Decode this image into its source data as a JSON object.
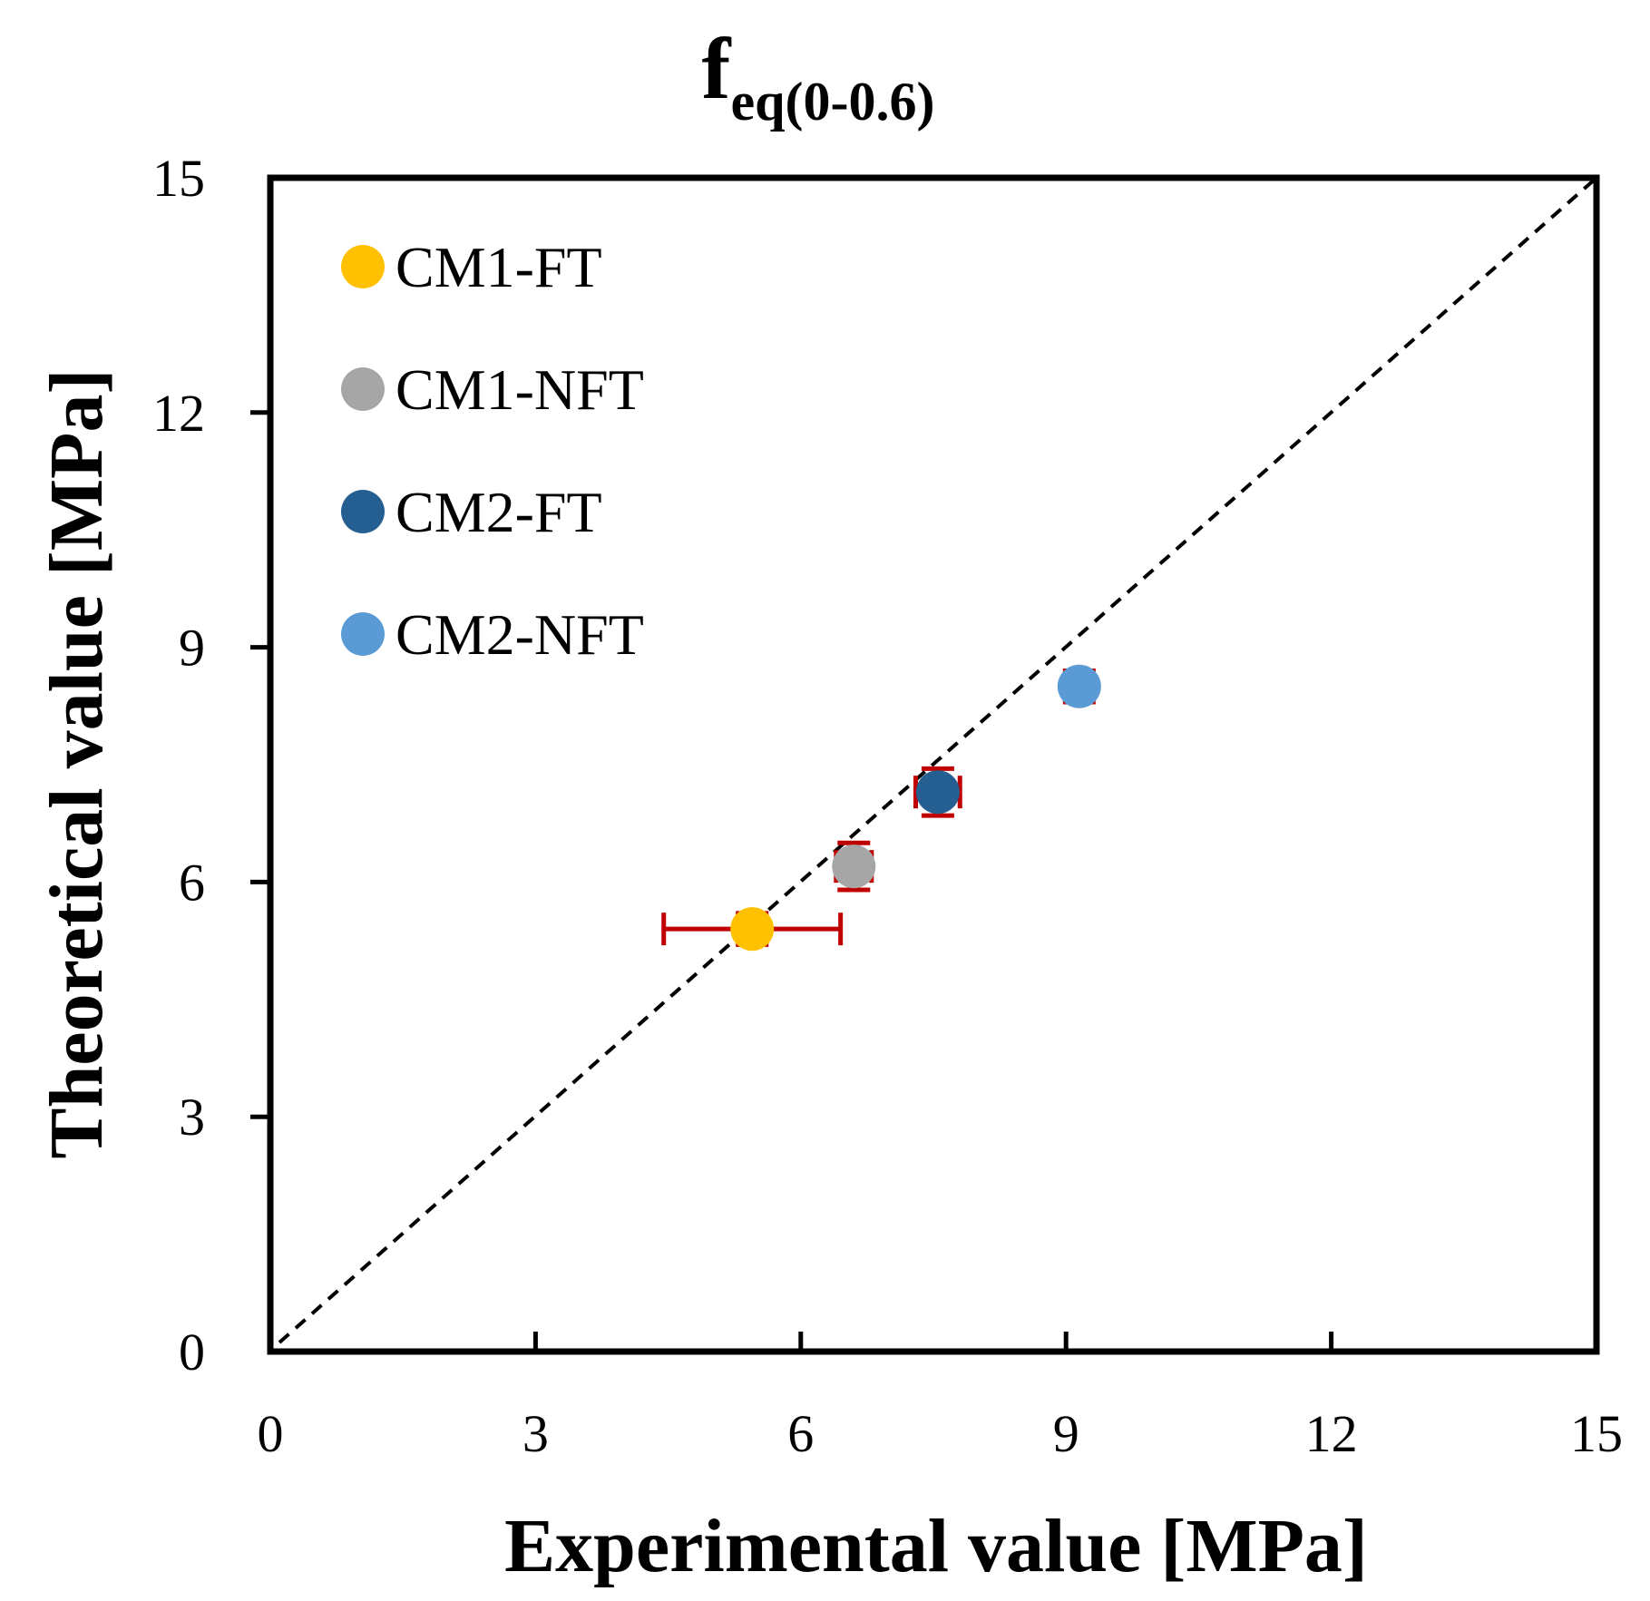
{
  "chart_data": {
    "type": "scatter",
    "title": {
      "main": "f",
      "subscript": "eq(0-0.6)"
    },
    "xlabel": "Experimental value [MPa]",
    "ylabel": "Theoretical value [MPa]",
    "xlim": [
      0,
      15
    ],
    "ylim": [
      0,
      15
    ],
    "xticks": [
      0,
      3,
      6,
      9,
      12,
      15
    ],
    "yticks": [
      0,
      3,
      6,
      9,
      12,
      15
    ],
    "grid": false,
    "legend_position": "top-left",
    "reference_line": {
      "style": "dashed",
      "from": [
        0,
        0
      ],
      "to": [
        15,
        15
      ],
      "color": "#000000"
    },
    "error_bar_color": "#C00000",
    "series": [
      {
        "name": "CM1-FT",
        "color": "#FFC000",
        "x": 5.45,
        "y": 5.4,
        "xerr": 1.0,
        "yerr": 0.2
      },
      {
        "name": "CM1-NFT",
        "color": "#A6A6A6",
        "x": 6.6,
        "y": 6.2,
        "xerr": 0.2,
        "yerr": 0.3
      },
      {
        "name": "CM2-FT",
        "color": "#255E91",
        "x": 7.55,
        "y": 7.15,
        "xerr": 0.25,
        "yerr": 0.3
      },
      {
        "name": "CM2-NFT",
        "color": "#5B9BD5",
        "x": 9.15,
        "y": 8.5,
        "xerr": 0.1,
        "yerr": 0.2
      }
    ]
  }
}
